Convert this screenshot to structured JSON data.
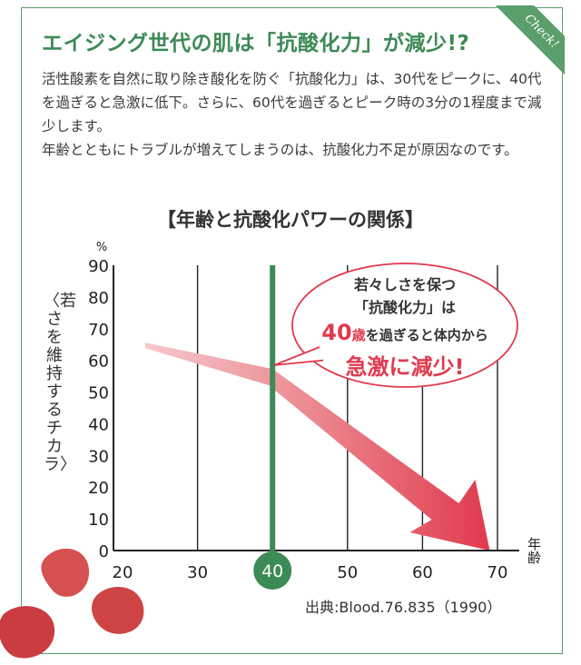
{
  "badge": {
    "label": "Check!"
  },
  "heading": "エイジング世代の肌は「抗酸化力」が減少!?",
  "body": {
    "para1": "活性酸素を自然に取り除き酸化を防ぐ「抗酸化力」は、30代をピークに、40代を過ぎると急激に低下。さらに、60代を過ぎるとピーク時の3分の1程度まで減少します。",
    "para2": "年齢とともにトラブルが増えてしまうのは、抗酸化力不足が原因なのです。"
  },
  "chart_title": "【年齢と抗酸化パワーの関係】",
  "bubble": {
    "line1": "若々しさを保つ",
    "line2": "「抗酸化力」は",
    "line3_num": "40",
    "line3_unit": "歳",
    "line3_rest": "を過ぎると体内から",
    "line4": "急激に減少!"
  },
  "source": "出典:Blood.76.835（1990）",
  "colors": {
    "accent_green": "#3c8a55",
    "arrow_red": "#e03a4e",
    "frame": "#5a9e6c"
  },
  "chart_data": {
    "type": "line",
    "ylabel": "〈若さを維持するチカラ〉",
    "yunit": "%",
    "xlabel": "年齢",
    "xlim": [
      20,
      70
    ],
    "ylim": [
      0,
      90
    ],
    "xticks": [
      "20",
      "30",
      "40",
      "50",
      "60",
      "70"
    ],
    "yticks": [
      "0",
      "10",
      "20",
      "30",
      "40",
      "50",
      "60",
      "70",
      "80",
      "90"
    ],
    "highlight_x": 40,
    "highlight_label": "40",
    "series": [
      {
        "x": [
          23,
          40,
          68
        ],
        "y": [
          65,
          55,
          0
        ]
      }
    ],
    "grid": "vertical"
  }
}
